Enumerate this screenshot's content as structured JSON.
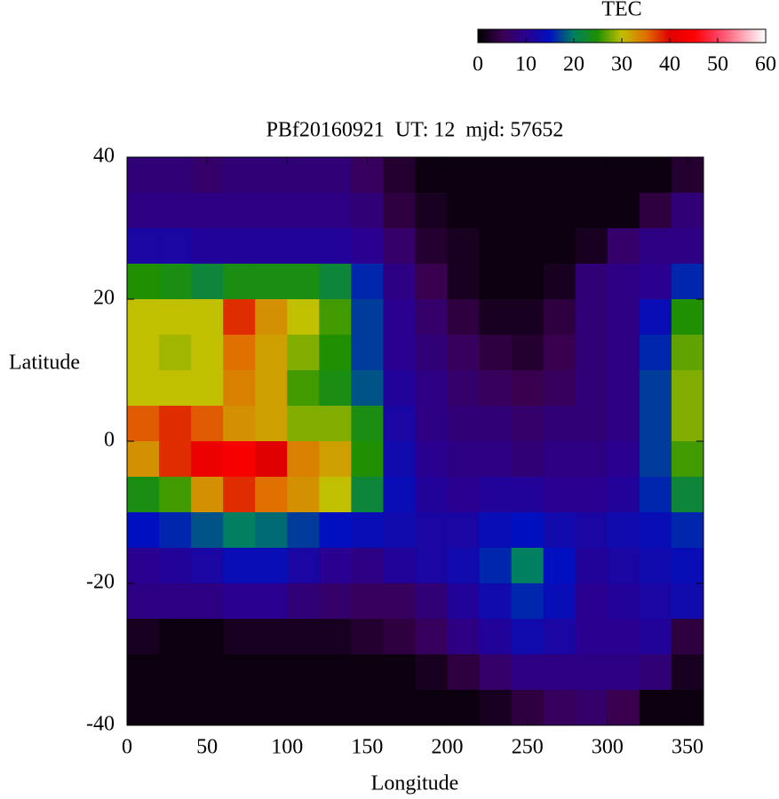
{
  "chart_data": {
    "type": "heatmap",
    "title": "PBf20160921  UT: 12  mjd: 57652",
    "xlabel": "Longitude",
    "ylabel": "Latitude",
    "colorbar_label": "TEC",
    "x": [
      10,
      30,
      50,
      70,
      90,
      110,
      130,
      150,
      170,
      190,
      210,
      230,
      250,
      270,
      290,
      310,
      330,
      350
    ],
    "y": [
      37.5,
      32.5,
      27.5,
      22.5,
      17.5,
      12.5,
      7.5,
      2.5,
      -2.5,
      -7.5,
      -12.5,
      -17.5,
      -22.5,
      -27.5,
      -32.5,
      -37.5
    ],
    "z": [
      [
        8,
        8,
        7,
        8,
        8,
        8,
        8,
        6,
        3,
        1,
        1,
        1,
        1,
        1,
        1,
        1,
        1,
        3
      ],
      [
        9,
        9,
        9,
        9,
        9,
        9,
        9,
        8,
        4,
        2,
        1,
        1,
        1,
        1,
        1,
        1,
        4,
        8
      ],
      [
        12,
        12,
        11,
        11,
        11,
        11,
        11,
        10,
        7,
        3,
        2,
        1,
        1,
        1,
        2,
        7,
        9,
        9
      ],
      [
        25,
        24,
        22,
        24,
        24,
        24,
        22,
        16,
        9,
        5,
        2,
        1,
        1,
        2,
        8,
        9,
        10,
        16
      ],
      [
        30,
        30,
        30,
        38,
        33,
        30,
        26,
        17,
        10,
        7,
        4,
        2,
        2,
        4,
        8,
        9,
        14,
        25
      ],
      [
        30,
        29,
        30,
        35,
        32,
        28,
        25,
        17,
        10,
        8,
        6,
        4,
        3,
        5,
        8,
        9,
        16,
        27
      ],
      [
        30,
        30,
        30,
        34,
        32,
        26,
        24,
        18,
        11,
        9,
        7,
        6,
        5,
        6,
        8,
        9,
        17,
        28
      ],
      [
        36,
        38,
        36,
        33,
        32,
        28,
        28,
        24,
        12,
        9,
        8,
        8,
        7,
        8,
        8,
        9,
        17,
        28
      ],
      [
        33,
        38,
        42,
        44,
        40,
        34,
        32,
        25,
        13,
        10,
        9,
        9,
        8,
        9,
        9,
        10,
        17,
        26
      ],
      [
        24,
        26,
        33,
        38,
        35,
        33,
        30,
        22,
        14,
        11,
        10,
        11,
        11,
        10,
        10,
        11,
        16,
        22
      ],
      [
        15,
        16,
        18,
        20,
        19,
        17,
        15,
        14,
        13,
        12,
        12,
        14,
        15,
        13,
        12,
        13,
        14,
        16
      ],
      [
        10,
        11,
        12,
        14,
        14,
        12,
        10,
        9,
        11,
        12,
        13,
        16,
        20,
        15,
        11,
        12,
        13,
        14
      ],
      [
        9,
        9,
        9,
        10,
        10,
        8,
        7,
        6,
        6,
        8,
        11,
        13,
        16,
        14,
        10,
        11,
        12,
        13
      ],
      [
        2,
        1,
        1,
        2,
        2,
        2,
        2,
        3,
        4,
        6,
        9,
        11,
        13,
        12,
        10,
        10,
        11,
        4
      ],
      [
        1,
        1,
        1,
        1,
        1,
        1,
        1,
        1,
        1,
        2,
        4,
        7,
        9,
        9,
        9,
        9,
        8,
        2
      ],
      [
        1,
        1,
        1,
        1,
        1,
        1,
        1,
        1,
        1,
        1,
        1,
        2,
        4,
        6,
        7,
        5,
        1,
        1
      ]
    ],
    "xlim": [
      0,
      360
    ],
    "xticks": [
      0,
      50,
      100,
      150,
      200,
      250,
      300,
      350
    ],
    "ylim": [
      -40,
      40
    ],
    "yticks": [
      -40,
      -20,
      0,
      20,
      40
    ],
    "zlim": [
      0,
      60
    ],
    "zticks": [
      0,
      10,
      20,
      30,
      40,
      50,
      60
    ],
    "colormap": [
      "#000000",
      "#3a0050",
      "#2a0090",
      "#0010c0",
      "#008060",
      "#209000",
      "#c0c000",
      "#e07000",
      "#e00000",
      "#ff0000",
      "#ff4060",
      "#ffa0b0",
      "#ffffff"
    ]
  }
}
